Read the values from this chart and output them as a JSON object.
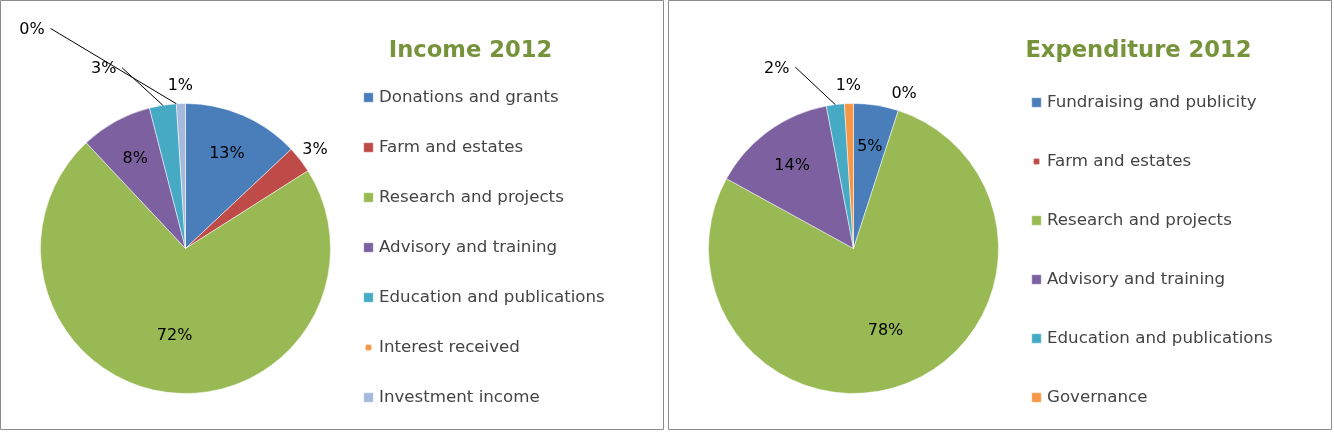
{
  "chart_data": [
    {
      "type": "pie",
      "title": "Income 2012",
      "categories": [
        "Donations and grants",
        "Farm and estates",
        "Research and projects",
        "Advisory and training",
        "Education and publications",
        "Interest received",
        "Investment income"
      ],
      "values": [
        13,
        3,
        72,
        8,
        3,
        0,
        1
      ],
      "colors": [
        "#4a7ebb",
        "#be4b48",
        "#98b954",
        "#7d60a0",
        "#46aac5",
        "#f79646",
        "#a5b9dd"
      ],
      "value_labels": [
        "13%",
        "3%",
        "72%",
        "8%",
        "3%",
        "0%",
        "1%"
      ],
      "legend": "right"
    },
    {
      "type": "pie",
      "title": "Expenditure 2012",
      "categories": [
        "Fundraising and publicity",
        "Farm and estates",
        "Research and projects",
        "Advisory and training",
        "Education and publications",
        "Governance"
      ],
      "values": [
        5,
        0,
        78,
        14,
        2,
        1
      ],
      "colors": [
        "#4a7ebb",
        "#be4b48",
        "#98b954",
        "#7d60a0",
        "#46aac5",
        "#f79646"
      ],
      "value_labels": [
        "5%",
        "0%",
        "78%",
        "14%",
        "2%",
        "1%"
      ],
      "legend": "right"
    }
  ]
}
